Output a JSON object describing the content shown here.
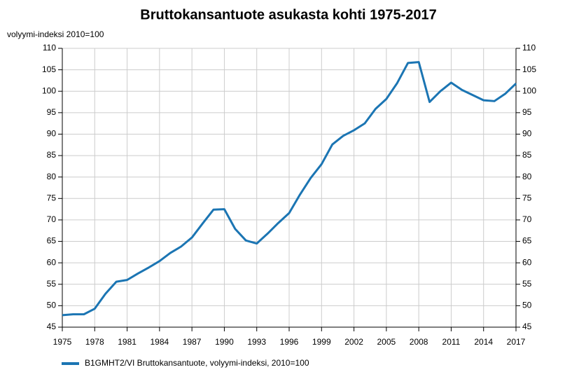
{
  "chart_data": {
    "type": "line",
    "title": "Bruttokansantuote asukasta kohti 1975-2017",
    "y_label": "volyymi-indeksi 2010=100",
    "x": [
      1975,
      1976,
      1977,
      1978,
      1979,
      1980,
      1981,
      1982,
      1983,
      1984,
      1985,
      1986,
      1987,
      1988,
      1989,
      1990,
      1991,
      1992,
      1993,
      1994,
      1995,
      1996,
      1997,
      1998,
      1999,
      2000,
      2001,
      2002,
      2003,
      2004,
      2005,
      2006,
      2007,
      2008,
      2009,
      2010,
      2011,
      2012,
      2013,
      2014,
      2015,
      2016,
      2017
    ],
    "series": [
      {
        "name": "B1GMHT2/VI Bruttokansantuote, volyymi-indeksi, 2010=100",
        "color": "#1b75b3",
        "values": [
          47.8,
          48.0,
          48.0,
          49.3,
          52.8,
          55.6,
          56.0,
          57.5,
          58.9,
          60.4,
          62.3,
          63.8,
          65.9,
          69.2,
          72.4,
          72.5,
          67.9,
          65.2,
          64.5,
          66.8,
          69.3,
          71.6,
          75.9,
          79.8,
          83.0,
          87.6,
          89.6,
          90.9,
          92.5,
          95.9,
          98.2,
          101.9,
          106.6,
          106.8,
          97.5,
          100.0,
          102.0,
          100.3,
          99.1,
          97.9,
          97.7,
          99.4,
          101.8
        ]
      }
    ],
    "xlim": [
      1975,
      2017
    ],
    "xticks": [
      1975,
      1978,
      1981,
      1984,
      1987,
      1990,
      1993,
      1996,
      1999,
      2002,
      2005,
      2008,
      2011,
      2014,
      2017
    ],
    "ylim": [
      45,
      110
    ],
    "yticks": [
      45,
      50,
      55,
      60,
      65,
      70,
      75,
      80,
      85,
      90,
      95,
      100,
      105,
      110
    ],
    "grid": true,
    "right_axis_mirror": true
  }
}
